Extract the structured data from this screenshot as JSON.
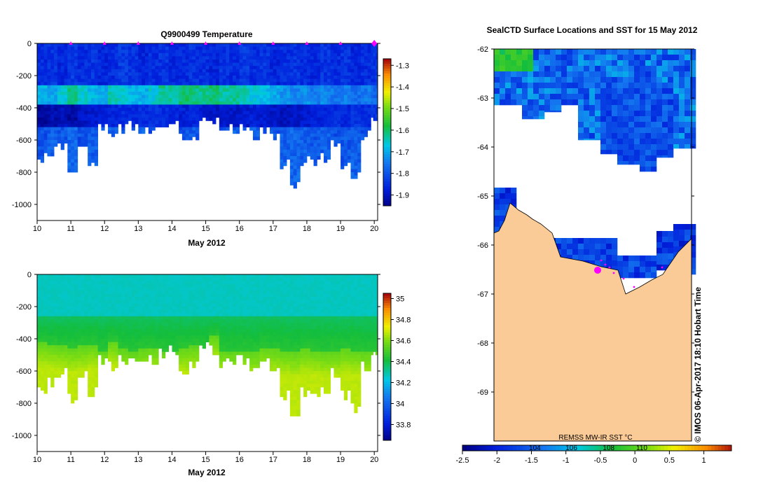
{
  "chart_data": [
    {
      "type": "heatmap",
      "title": "Q9900499  Temperature",
      "xlabel": "May 2012",
      "ylabel": "",
      "xlim": [
        10,
        20.1
      ],
      "ylim": [
        0,
        -1100
      ],
      "x_ticks": [
        10,
        11,
        12,
        13,
        14,
        15,
        16,
        17,
        18,
        19,
        20
      ],
      "y_ticks": [
        0,
        -200,
        -400,
        -600,
        -800,
        -1000
      ],
      "colorbar": {
        "min": -1.95,
        "max": -1.27,
        "ticks": [
          -1.3,
          -1.4,
          -1.5,
          -1.6,
          -1.7,
          -1.8,
          -1.9
        ]
      },
      "surface_markers_day": [
        11,
        12,
        13,
        14,
        15,
        16,
        17,
        18,
        19,
        20
      ],
      "profiles": {
        "day": [
          10.0,
          10.3,
          10.6,
          10.9,
          11.2,
          11.5,
          11.8,
          12.1,
          12.4,
          12.7,
          13.0,
          13.3,
          13.6,
          13.9,
          14.2,
          14.5,
          14.8,
          15.1,
          15.4,
          15.7,
          16.0,
          16.3,
          16.6,
          16.9,
          17.2,
          17.5,
          17.8,
          18.1,
          18.4,
          18.7,
          19.0,
          19.3,
          19.6,
          19.9
        ],
        "max_depth": [
          -740,
          -700,
          -650,
          -810,
          -650,
          -760,
          -560,
          -600,
          -560,
          -540,
          -560,
          -560,
          -520,
          -510,
          -620,
          -600,
          -480,
          -490,
          -570,
          -560,
          -560,
          -600,
          -550,
          -600,
          -780,
          -890,
          -760,
          -750,
          -740,
          -650,
          -780,
          -860,
          -600,
          -510
        ],
        "surface_temp": [
          -1.85,
          -1.84,
          -1.86,
          -1.83,
          -1.85,
          -1.84,
          -1.86,
          -1.85,
          -1.83,
          -1.84,
          -1.86,
          -1.85,
          -1.84,
          -1.86,
          -1.85,
          -1.84,
          -1.85,
          -1.86,
          -1.84,
          -1.85,
          -1.83,
          -1.85,
          -1.84,
          -1.86,
          -1.85,
          -1.84,
          -1.85,
          -1.86,
          -1.84,
          -1.85,
          -1.84,
          -1.86,
          -1.85,
          -1.84
        ],
        "warm_layer_temp": [
          -1.68,
          -1.7,
          -1.66,
          -1.6,
          -1.65,
          -1.68,
          -1.7,
          -1.64,
          -1.66,
          -1.68,
          -1.69,
          -1.66,
          -1.62,
          -1.63,
          -1.6,
          -1.61,
          -1.62,
          -1.6,
          -1.63,
          -1.62,
          -1.64,
          -1.66,
          -1.68,
          -1.7,
          -1.72,
          -1.74,
          -1.72,
          -1.74,
          -1.73,
          -1.75,
          -1.74,
          -1.76,
          -1.75,
          -1.77
        ],
        "cold_layer_temp": [
          -1.93,
          -1.91,
          -1.9,
          -1.92,
          -1.89,
          -1.88,
          -1.87,
          -1.86,
          -1.85,
          -1.86,
          -1.85,
          -1.84,
          -1.85,
          -1.86,
          -1.87,
          -1.86,
          -1.88,
          -1.89,
          -1.88,
          -1.89,
          -1.88,
          -1.87,
          -1.88,
          -1.89,
          -1.9,
          -1.89,
          -1.88,
          -1.87,
          -1.86,
          -1.85,
          -1.86,
          -1.84,
          -1.85,
          -1.84
        ],
        "deep_temp": [
          -1.8,
          -1.78,
          -1.79,
          -1.77,
          -1.8,
          -1.78,
          -1.79,
          -1.78,
          -1.8,
          -1.79,
          -1.78,
          -1.8,
          -1.79,
          -1.78,
          -1.8,
          -1.79,
          -1.78,
          -1.79,
          -1.8,
          -1.78,
          -1.79,
          -1.78,
          -1.8,
          -1.79,
          -1.78,
          -1.77,
          -1.78,
          -1.79,
          -1.78,
          -1.8,
          -1.79,
          -1.78,
          -1.8,
          -1.79
        ]
      }
    },
    {
      "type": "heatmap",
      "title": "",
      "xlabel": "May 2012",
      "ylabel": "",
      "xlim": [
        10,
        20.1
      ],
      "ylim": [
        0,
        -1100
      ],
      "x_ticks": [
        10,
        11,
        12,
        13,
        14,
        15,
        16,
        17,
        18,
        19,
        20
      ],
      "y_ticks": [
        0,
        -200,
        -400,
        -600,
        -800,
        -1000
      ],
      "colorbar": {
        "min": 33.65,
        "max": 35.05,
        "ticks": [
          35,
          34.8,
          34.6,
          34.4,
          34.2,
          34,
          33.8
        ]
      },
      "profiles": {
        "surface_sal": 34.28,
        "mid_sal": 34.38,
        "deep_sal": 34.68,
        "transition_depth": [
          -420,
          -430,
          -440,
          -450,
          -440,
          -430,
          -470,
          -410,
          -460,
          -480,
          -460,
          -450,
          -470,
          -480,
          -450,
          -440,
          -460,
          -380,
          -470,
          -480,
          -470,
          -480,
          -450,
          -460,
          -470,
          -480,
          -460,
          -470,
          -480,
          -470,
          -460,
          -470,
          -480,
          -470
        ]
      }
    },
    {
      "type": "heatmap",
      "title": "SealCTD Surface Locations and SST for 15 May 2012",
      "xlabel": "",
      "ylabel": "",
      "ylim": [
        -70,
        -62
      ],
      "y_ticks": [
        -62,
        -63,
        -64,
        -65,
        -66,
        -67,
        -68,
        -69
      ],
      "colorbar": {
        "min": -2.5,
        "max": 1.4,
        "ticks": [
          -2.5,
          -2,
          -1.5,
          -1,
          -0.5,
          0,
          0.5,
          1
        ],
        "inner_labels": [
          "104",
          "106",
          "108",
          "110"
        ],
        "label": "REMSS MW-IR SST °C"
      },
      "land_color": "#fbcb97"
    }
  ],
  "footer": {
    "stamp": "© IMOS 06-Apr-2017 18:10 Hobart Time"
  },
  "colors": {
    "marker": "#ff00ff",
    "axis": "#000000"
  }
}
